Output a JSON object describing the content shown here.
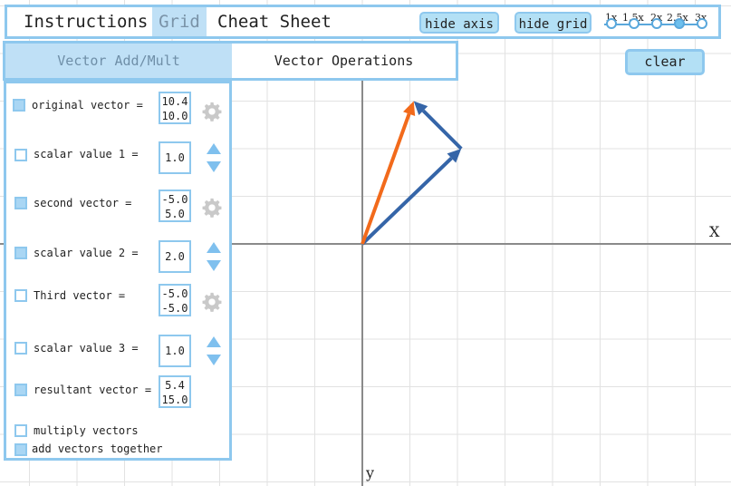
{
  "top_tabs": [
    "Instructions",
    "Grid",
    "Cheat Sheet"
  ],
  "buttons": {
    "hide_axis": "hide axis",
    "hide_grid": "hide grid",
    "clear": "clear"
  },
  "zoom": {
    "options": [
      "1x",
      "1.5x",
      "2x",
      "2.5x",
      "3x"
    ],
    "selected": "2.5x"
  },
  "sub_tabs": [
    "Vector Add/Mult",
    "Vector Operations"
  ],
  "panel": {
    "original_vector": {
      "label": "original vector =",
      "checked": true,
      "x": "10.4",
      "y": "10.0"
    },
    "scalar1": {
      "label": "scalar value 1 =",
      "checked": false,
      "value": "1.0"
    },
    "second_vector": {
      "label": "second vector =",
      "checked": true,
      "x": "-5.0",
      "y": "5.0"
    },
    "scalar2": {
      "label": "scalar value 2 =",
      "checked": true,
      "value": "2.0"
    },
    "third_vector": {
      "label": "Third vector =",
      "checked": false,
      "x": "-5.0",
      "y": "-5.0"
    },
    "scalar3": {
      "label": "scalar value 3 =",
      "checked": false,
      "value": "1.0"
    },
    "resultant_vector": {
      "label": "resultant vector =",
      "checked": true,
      "x": "5.4",
      "y": "15.0"
    },
    "multiply": {
      "label": "multiply vectors",
      "checked": false
    },
    "add": {
      "label": "add vectors together",
      "checked": true
    }
  },
  "axes": {
    "x_label": "X",
    "y_label": "y"
  },
  "colors": {
    "accent": "#8ec8ee",
    "active_tab": "#bfe0f6",
    "vector_blue": "#3565a8",
    "vector_orange": "#f26a1b",
    "grid": "#e2e2e2",
    "axis": "#8a8a8a"
  }
}
